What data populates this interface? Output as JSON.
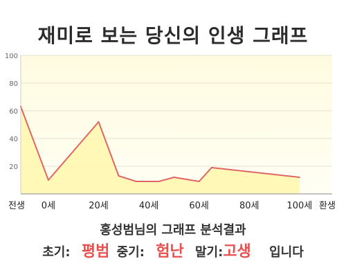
{
  "title": "재미로 보는 당신의 인생 그래프",
  "caption": "홍성범님의 그래프 분석결과",
  "summary": {
    "early_label": "초기:",
    "early_value": "평범",
    "middle_label": "중기:",
    "middle_value": "험난",
    "late_label": "말기:",
    "late_value": "고생",
    "ending": "입니다"
  },
  "colors": {
    "line": "#e06666",
    "fill": "#fff7b0",
    "plot_bg": "#fffde6",
    "accent": "#e8504f"
  },
  "chart_data": {
    "type": "area",
    "categories": [
      "전생",
      "0세",
      "20세",
      "40세",
      "60세",
      "80세",
      "100세",
      "환생"
    ],
    "y_ticks": [
      20,
      40,
      60,
      80,
      100
    ],
    "ylim": [
      0,
      100
    ],
    "grid": true,
    "series": [
      {
        "points": [
          {
            "x": -11,
            "y": 63
          },
          {
            "x": 0,
            "y": 10
          },
          {
            "x": 20,
            "y": 52
          },
          {
            "x": 28,
            "y": 13
          },
          {
            "x": 35,
            "y": 9
          },
          {
            "x": 44,
            "y": 9
          },
          {
            "x": 50,
            "y": 12
          },
          {
            "x": 60,
            "y": 9
          },
          {
            "x": 65,
            "y": 19
          },
          {
            "x": 80,
            "y": 16
          },
          {
            "x": 100,
            "y": 12
          }
        ]
      }
    ]
  }
}
